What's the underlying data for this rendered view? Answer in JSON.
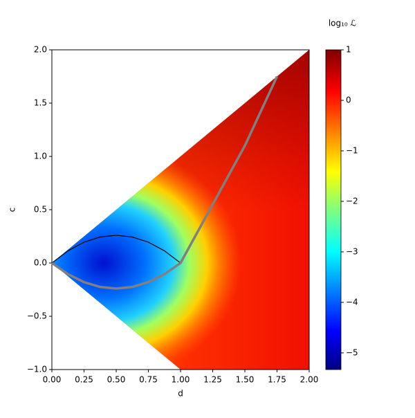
{
  "chart_data": {
    "type": "heatmap",
    "xlabel": "d",
    "ylabel": "c",
    "colorbar_label": "log₁₀ ℒ",
    "xlim": [
      0,
      2
    ],
    "ylim": [
      -1,
      2
    ],
    "xticks": [
      {
        "value": 0,
        "label": "0.00"
      },
      0.25,
      {
        "value": 0.5,
        "label": "0.50"
      },
      0.75,
      {
        "value": 1,
        "label": "1.00"
      },
      1.25,
      {
        "value": 1.5,
        "label": "1.50"
      },
      1.75,
      {
        "value": 2,
        "label": "2.00"
      }
    ],
    "yticks": [
      {
        "value": -1,
        "label": "−1.0"
      },
      {
        "value": -0.5,
        "label": "−0.5"
      },
      {
        "value": 0,
        "label": "0.0"
      },
      0.5,
      {
        "value": 1,
        "label": "1.0"
      },
      1.5,
      {
        "value": 2,
        "label": "2.0"
      }
    ],
    "clim": [
      -5.33,
      1
    ],
    "cticks": [
      {
        "value": -5,
        "label": "−5"
      },
      {
        "value": -4,
        "label": "−4"
      },
      {
        "value": -3,
        "label": "−3"
      },
      {
        "value": -2,
        "label": "−2"
      },
      {
        "value": -1,
        "label": "−1"
      },
      0,
      1
    ],
    "lines": [
      {
        "color": "#000000",
        "x": [
          0,
          0.125,
          0.25,
          0.375,
          0.5,
          0.625,
          0.75,
          0.875,
          1
        ],
        "y": [
          0,
          0.114,
          0.195,
          0.244,
          0.26,
          0.244,
          0.195,
          0.114,
          0
        ]
      },
      {
        "color": "#000000",
        "x": [
          0,
          0.125,
          0.25,
          0.375,
          0.5,
          0.625,
          0.75,
          0.875,
          1
        ],
        "y": [
          0,
          -0.105,
          -0.18,
          -0.225,
          -0.24,
          -0.225,
          -0.18,
          -0.105,
          0
        ]
      },
      {
        "color": "#808080",
        "x": [
          0,
          0.125,
          0.25,
          0.375,
          0.5,
          0.625,
          0.75,
          0.875,
          1,
          1.25,
          1.5,
          1.75
        ],
        "y": [
          0,
          -0.105,
          -0.18,
          -0.225,
          -0.24,
          -0.225,
          -0.18,
          -0.105,
          0,
          0.55,
          1.1,
          1.75
        ]
      }
    ]
  }
}
